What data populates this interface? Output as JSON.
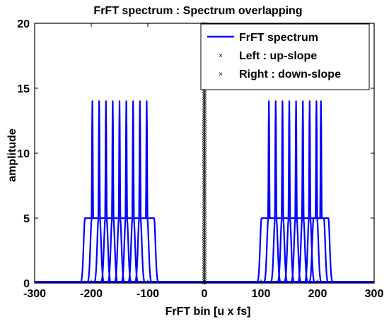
{
  "chart_data": {
    "type": "line",
    "title": "FrFT spectrum : Spectrum overlapping",
    "xlabel": "FrFT bin [u x fs]",
    "ylabel": "amplitude",
    "xlim": [
      -300,
      300
    ],
    "ylim": [
      0,
      20
    ],
    "xticks": [
      -300,
      -200,
      -100,
      0,
      100,
      200,
      300
    ],
    "yticks": [
      0,
      5,
      10,
      15,
      20
    ],
    "grid": false,
    "legend_placement": "top-right",
    "colors": {
      "spectrum": "#0000ff",
      "marker": "#000000",
      "axes": "#000000"
    },
    "series": [
      {
        "name": "FrFT spectrum",
        "kind": "line",
        "style": "solid",
        "peak_amplitude": 14,
        "plateau_amplitude": 5,
        "floor_amplitude": 0.1,
        "groups": [
          {
            "peaks_x": [
              -198,
              -186,
              -174,
              -162,
              -150,
              -138,
              -126,
              -114,
              -102
            ]
          },
          {
            "peaks_x": [
              114,
              126,
              138,
              150,
              162,
              174,
              186,
              198,
              206
            ]
          }
        ]
      },
      {
        "name": "Left : up-slope",
        "kind": "marker",
        "marker": "x",
        "x": 0,
        "y_range": [
          0,
          20
        ]
      },
      {
        "name": "Right : down-slope",
        "kind": "marker",
        "marker": "x",
        "x": 0,
        "y_range": [
          0,
          20
        ]
      }
    ]
  }
}
